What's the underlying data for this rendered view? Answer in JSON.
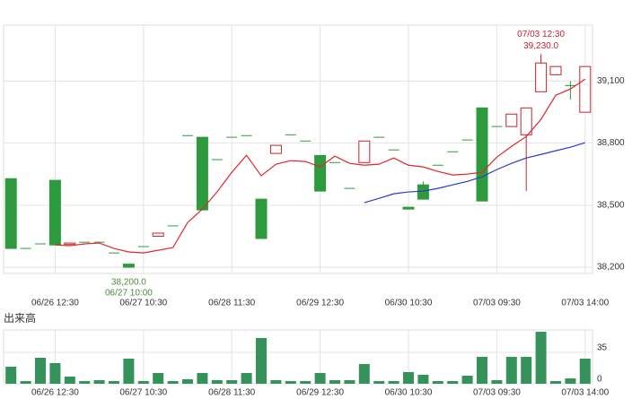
{
  "chart_data": {
    "type": "candlestick",
    "categories": [
      null,
      null,
      null,
      "06/26 12:30",
      null,
      null,
      null,
      null,
      null,
      "06/27 10:30",
      null,
      null,
      null,
      null,
      null,
      "06/28 11:30",
      null,
      null,
      null,
      null,
      null,
      "06/29 12:30",
      null,
      null,
      null,
      null,
      null,
      "06/30 10:30",
      null,
      null,
      null,
      null,
      null,
      "07/03 09:30",
      null,
      null,
      null,
      null,
      null,
      "07/03 14:00"
    ],
    "open": [
      38628,
      38291,
      38313,
      38620,
      38310,
      38321,
      38321,
      38269,
      38215,
      38300,
      38350,
      38400,
      38836,
      38828,
      38720,
      38828,
      38836,
      38529,
      38750,
      38840,
      38810,
      38740,
      38706,
      38581,
      38706,
      38828,
      38767,
      38490,
      38598,
      38693,
      38758,
      38815,
      38970,
      38880,
      38880,
      38840,
      39048,
      39130,
      39078,
      38949
    ],
    "high": [
      38628,
      38291,
      38313,
      38620,
      38317,
      38321,
      38321,
      38269,
      38215,
      38300,
      38365,
      38400,
      38836,
      38828,
      38720,
      38828,
      38836,
      38529,
      38789,
      38840,
      38810,
      38740,
      38706,
      38581,
      38810,
      38828,
      38767,
      38490,
      38615,
      38693,
      38758,
      38815,
      38970,
      38880,
      38940,
      38970,
      39230,
      39170,
      39100,
      39170
    ],
    "low": [
      38291,
      38291,
      38313,
      38308,
      38310,
      38321,
      38321,
      38269,
      38200,
      38300,
      38350,
      38400,
      38836,
      38477,
      38720,
      38828,
      38836,
      38339,
      38750,
      38840,
      38810,
      38568,
      38706,
      38581,
      38706,
      38828,
      38767,
      38481,
      38529,
      38693,
      38758,
      38815,
      38520,
      38880,
      38880,
      38568,
      39048,
      39130,
      39010,
      38949
    ],
    "close": [
      38291,
      38291,
      38313,
      38308,
      38317,
      38321,
      38321,
      38269,
      38200,
      38300,
      38365,
      38400,
      38836,
      38477,
      38720,
      38828,
      38836,
      38339,
      38789,
      38840,
      38810,
      38568,
      38706,
      38581,
      38810,
      38828,
      38767,
      38481,
      38529,
      38693,
      38758,
      38815,
      38520,
      38880,
      38940,
      38970,
      39187,
      39170,
      39078,
      39170
    ],
    "series": [
      {
        "color": "#e0262e",
        "values": [
          null,
          null,
          null,
          38308,
          38304,
          38313,
          38317,
          38291,
          38274,
          38269,
          38282,
          38295,
          38416,
          38481,
          38564,
          38659,
          38741,
          38642,
          38698,
          38715,
          38711,
          38685,
          38737,
          38702,
          38693,
          38698,
          38728,
          38693,
          38685,
          38663,
          38646,
          38650,
          38659,
          38732,
          38784,
          38832,
          38914,
          39031,
          39061,
          39109
        ]
      },
      {
        "color": "#2b3bc8",
        "values": [
          null,
          null,
          null,
          null,
          null,
          null,
          null,
          null,
          null,
          null,
          null,
          null,
          null,
          null,
          null,
          null,
          null,
          null,
          null,
          null,
          null,
          null,
          null,
          null,
          38512,
          38533,
          38555,
          38564,
          38568,
          38581,
          38598,
          38615,
          38637,
          38672,
          38702,
          38728,
          38745,
          38763,
          38780,
          38802
        ]
      }
    ],
    "ylim": [
      38170,
      39370
    ],
    "yticks": [
      {
        "value": 38200,
        "label": "38,200"
      },
      {
        "value": 38500,
        "label": "38,500"
      },
      {
        "value": 38800,
        "label": "38,800"
      },
      {
        "value": 39100,
        "label": "39,100"
      }
    ],
    "annotations": [
      {
        "time": "07/03 12:30",
        "label": "39,230.0",
        "value": 39230,
        "field": "high"
      },
      {
        "time": "06/27 10:00",
        "label": "38,200.0",
        "value": 38200,
        "field": "low"
      }
    ],
    "volume": {
      "title": "出来高",
      "color": "#34925a",
      "values": [
        19,
        3,
        29,
        23,
        8,
        3,
        4,
        3,
        28,
        3,
        12,
        3,
        5,
        12,
        4,
        4,
        12,
        51,
        4,
        3,
        3,
        12,
        4,
        4,
        22,
        3,
        3,
        13,
        10,
        3,
        3,
        9,
        30,
        4,
        30,
        30,
        58,
        3,
        6,
        28
      ],
      "ylim": [
        0,
        60
      ],
      "yticks": [
        0,
        35
      ]
    },
    "grid": true
  }
}
